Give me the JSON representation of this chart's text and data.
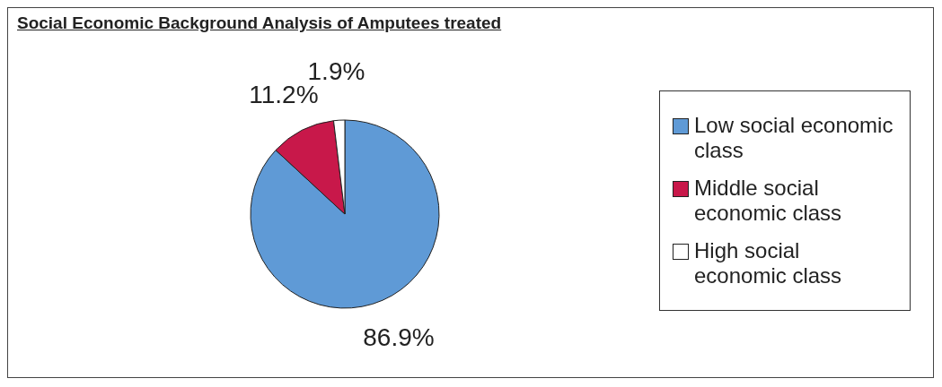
{
  "chart_data": {
    "type": "pie",
    "title": "Social Economic Background Analysis of Amputees treated",
    "categories": [
      "Low social economic class",
      "Middle social economic class",
      "High social economic class"
    ],
    "values": [
      86.9,
      11.2,
      1.9
    ],
    "value_labels": [
      "86.9%",
      "11.2%",
      "1.9%"
    ],
    "colors": [
      "#5f9ad6",
      "#c8184a",
      "#ffffff"
    ],
    "legend": "right"
  }
}
